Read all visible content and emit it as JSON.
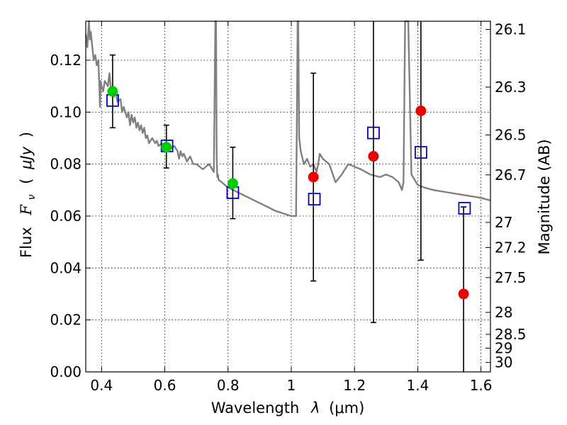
{
  "chart_data": {
    "type": "scatter",
    "xlabel_text": "Wavelength",
    "xlabel_symbol": "λ",
    "xlabel_unit": "(μm)",
    "ylabel_text": "Flux",
    "ylabel_symbol": "F",
    "ylabel_subscript": "ν",
    "ylabel_unit_open": "(",
    "ylabel_unit": "μJy",
    "ylabel_unit_close": ")",
    "y2label": "Magnitude (AB)",
    "xlim": [
      0.35,
      1.63
    ],
    "ylim": [
      0.0,
      0.135
    ],
    "x_ticks": [
      0.4,
      0.6,
      0.8,
      1.0,
      1.2,
      1.4,
      1.6
    ],
    "x_tick_labels": [
      "0.4",
      "0.6",
      "0.8",
      "1",
      "1.2",
      "1.4",
      "1.6"
    ],
    "y_ticks": [
      0.0,
      0.02,
      0.04,
      0.06,
      0.08,
      0.1,
      0.12
    ],
    "y_tick_labels": [
      "0.00",
      "0.02",
      "0.04",
      "0.06",
      "0.08",
      "0.10",
      "0.12"
    ],
    "y2_ticks": [
      26.1,
      26.3,
      26.5,
      26.7,
      27,
      27.2,
      27.5,
      28,
      28.5,
      29,
      30
    ],
    "y2_tick_labels": [
      "26.1",
      "26.3",
      "26.5",
      "26.7",
      "27",
      "27.2",
      "27.5",
      "28",
      "28.5",
      "29",
      "30"
    ],
    "grid": true,
    "colors": {
      "model": "#808080",
      "detection": "#00cc00",
      "upper_limit": "#ee0000",
      "model_photometry": "#0000cc",
      "error_bar": "#000000"
    },
    "series": [
      {
        "name": "model spectrum",
        "type": "line",
        "x": [
          0.35,
          0.355,
          0.36,
          0.363,
          0.366,
          0.37,
          0.375,
          0.38,
          0.385,
          0.39,
          0.393,
          0.395,
          0.397,
          0.4,
          0.405,
          0.41,
          0.42,
          0.425,
          0.43,
          0.435,
          0.44,
          0.445,
          0.45,
          0.46,
          0.465,
          0.47,
          0.48,
          0.485,
          0.49,
          0.495,
          0.5,
          0.505,
          0.51,
          0.515,
          0.52,
          0.525,
          0.53,
          0.535,
          0.54,
          0.545,
          0.55,
          0.56,
          0.57,
          0.575,
          0.58,
          0.59,
          0.6,
          0.62,
          0.63,
          0.64,
          0.645,
          0.65,
          0.655,
          0.66,
          0.67,
          0.68,
          0.69,
          0.7,
          0.72,
          0.74,
          0.755,
          0.76,
          0.762,
          0.764,
          0.766,
          0.768,
          0.77,
          0.78,
          0.8,
          0.85,
          0.9,
          0.95,
          1.0,
          1.015,
          1.018,
          1.02,
          1.022,
          1.025,
          1.03,
          1.04,
          1.05,
          1.06,
          1.07,
          1.08,
          1.085,
          1.09,
          1.1,
          1.12,
          1.14,
          1.16,
          1.17,
          1.18,
          1.2,
          1.22,
          1.25,
          1.28,
          1.3,
          1.32,
          1.34,
          1.35,
          1.355,
          1.36,
          1.37,
          1.38,
          1.39,
          1.4,
          1.42,
          1.45,
          1.5,
          1.55,
          1.6,
          1.63
        ],
        "y": [
          0.13,
          0.125,
          0.135,
          0.128,
          0.131,
          0.126,
          0.12,
          0.122,
          0.118,
          0.12,
          0.11,
          0.102,
          0.112,
          0.11,
          0.108,
          0.112,
          0.11,
          0.115,
          0.108,
          0.11,
          0.106,
          0.108,
          0.104,
          0.105,
          0.1,
          0.102,
          0.098,
          0.1,
          0.095,
          0.099,
          0.096,
          0.098,
          0.094,
          0.096,
          0.093,
          0.095,
          0.092,
          0.094,
          0.09,
          0.091,
          0.088,
          0.09,
          0.088,
          0.089,
          0.087,
          0.088,
          0.087,
          0.086,
          0.087,
          0.085,
          0.082,
          0.085,
          0.083,
          0.084,
          0.081,
          0.083,
          0.08,
          0.08,
          0.078,
          0.08,
          0.077,
          0.135,
          0.135,
          0.083,
          0.075,
          0.076,
          0.074,
          0.073,
          0.071,
          0.068,
          0.065,
          0.062,
          0.06,
          0.06,
          0.1,
          0.135,
          0.135,
          0.09,
          0.085,
          0.08,
          0.082,
          0.079,
          0.08,
          0.077,
          0.08,
          0.084,
          0.082,
          0.08,
          0.073,
          0.076,
          0.078,
          0.08,
          0.079,
          0.078,
          0.076,
          0.075,
          0.076,
          0.075,
          0.073,
          0.07,
          0.073,
          0.135,
          0.135,
          0.076,
          0.074,
          0.072,
          0.071,
          0.07,
          0.069,
          0.068,
          0.067,
          0.066
        ]
      },
      {
        "name": "detections",
        "type": "scatter",
        "x": [
          0.435,
          0.605,
          0.815
        ],
        "y": [
          0.108,
          0.0865,
          0.0725
        ]
      },
      {
        "name": "non-detections",
        "type": "scatter",
        "x": [
          1.07,
          1.26,
          1.41,
          1.545
        ],
        "y": [
          0.075,
          0.083,
          0.1005,
          0.03
        ]
      },
      {
        "name": "model photometry",
        "type": "scatter",
        "x": [
          0.435,
          0.607,
          0.815,
          1.073,
          1.26,
          1.41,
          1.548
        ],
        "y": [
          0.1045,
          0.087,
          0.069,
          0.0665,
          0.092,
          0.0845,
          0.063
        ]
      },
      {
        "name": "error bars",
        "type": "errorbar",
        "x": [
          0.435,
          0.605,
          0.815,
          1.07,
          1.26,
          1.41,
          1.545
        ],
        "low": [
          0.094,
          0.0785,
          0.059,
          0.035,
          0.019,
          0.043,
          0.0
        ],
        "high": [
          0.122,
          0.095,
          0.0865,
          0.115,
          0.135,
          0.135,
          0.0635
        ]
      }
    ]
  }
}
